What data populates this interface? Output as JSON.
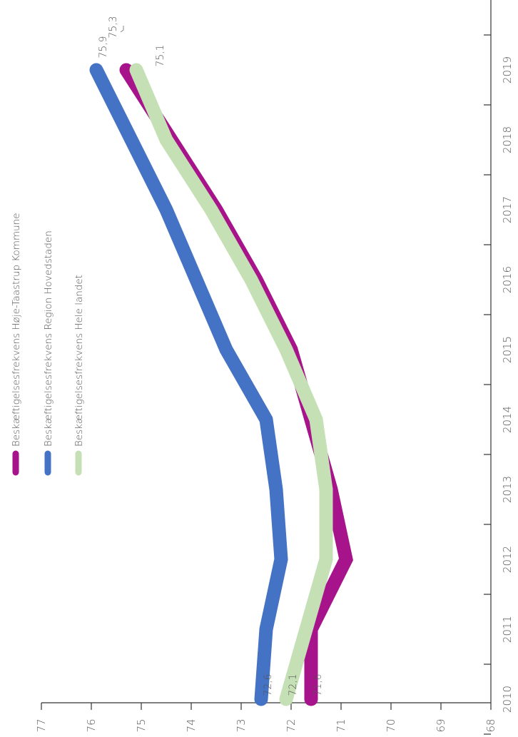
{
  "chart_data": {
    "type": "line",
    "orientation": "rotated-90",
    "categories": [
      "2010",
      "2011",
      "2012",
      "2013",
      "2014",
      "2015",
      "2016",
      "2017",
      "2018",
      "2019"
    ],
    "y_ticks": [
      "77",
      "76",
      "75",
      "74",
      "73",
      "72",
      "71",
      "70",
      "69",
      "68"
    ],
    "ylim": [
      68,
      77
    ],
    "series": [
      {
        "name": "Beskæftigelsesfrekvens Høje-Taastrup Kommune",
        "color": "#a6138a",
        "values": [
          71.6,
          71.6,
          70.9,
          71.2,
          71.6,
          72.0,
          72.7,
          73.5,
          74.4,
          75.3
        ],
        "end_labels": [
          "71,6",
          "75,3"
        ]
      },
      {
        "name": "Beskæftigelsesfrekvens Region Hovedstaden",
        "color": "#4472c4",
        "values": [
          72.6,
          72.5,
          72.2,
          72.3,
          72.5,
          73.3,
          73.9,
          74.5,
          75.2,
          75.9
        ],
        "end_labels": [
          "72,6",
          "75,9"
        ]
      },
      {
        "name": "Beskæftigelsesfrekvens Hele landet",
        "color": "#c5e0b4",
        "values": [
          72.1,
          71.7,
          71.3,
          71.3,
          71.5,
          72.1,
          72.8,
          73.6,
          74.5,
          75.1
        ],
        "end_labels": [
          "72,1",
          "75,1"
        ]
      }
    ],
    "grid": false,
    "legend_position": "top-left"
  }
}
